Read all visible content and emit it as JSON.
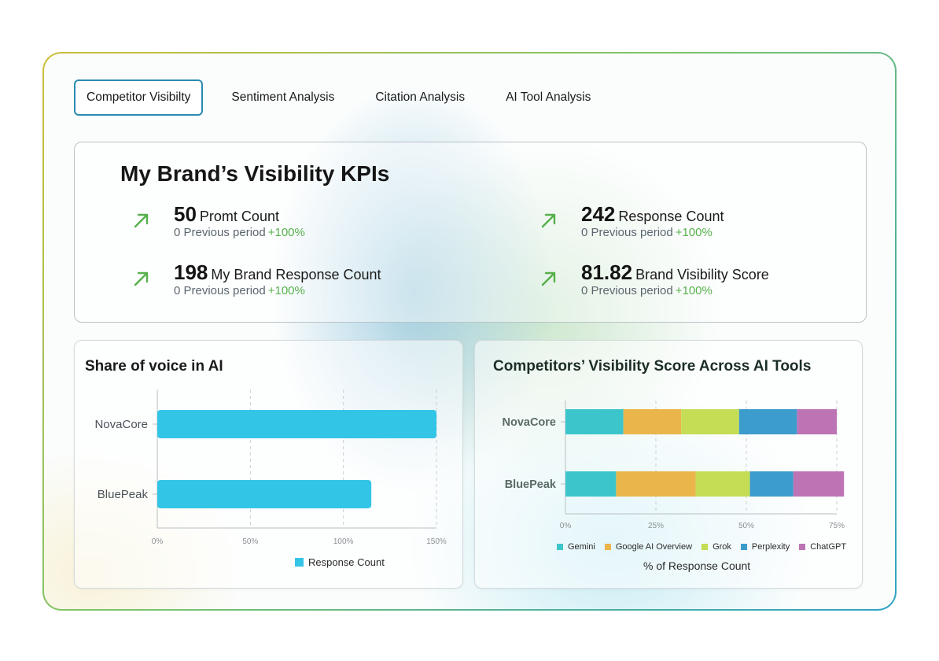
{
  "tabs": [
    {
      "label": "Competitor Visibilty",
      "active": true
    },
    {
      "label": "Sentiment Analysis",
      "active": false
    },
    {
      "label": "Citation Analysis",
      "active": false
    },
    {
      "label": "AI Tool Analysis",
      "active": false
    }
  ],
  "kpis": {
    "title": "My Brand’s Visibility KPIs",
    "items": [
      {
        "value": "50",
        "label": "Promt Count",
        "previous": "0 Previous period",
        "change": "+100%"
      },
      {
        "value": "242",
        "label": "Response Count",
        "previous": "0 Previous period",
        "change": "+100%"
      },
      {
        "value": "198",
        "label": "My Brand Response Count",
        "previous": "0 Previous period",
        "change": "+100%"
      },
      {
        "value": "81.82",
        "label": "Brand Visibility Score",
        "previous": "0 Previous period",
        "change": "+100%"
      }
    ]
  },
  "colors": {
    "accent_border": "#2b8bb0",
    "positive": "#56b04b",
    "bar": "#33c5e6",
    "gemini": "#3cc6cc",
    "google_ai_overview": "#eab54a",
    "grok": "#c4dd55",
    "perplexity": "#3c9ccc",
    "chatgpt": "#bd74b5"
  },
  "chart_data": [
    {
      "type": "bar",
      "orientation": "horizontal",
      "title": "Share of voice in AI",
      "categories": [
        "NovaCore",
        "BluePeak"
      ],
      "series": [
        {
          "name": "Response Count",
          "values": [
            150,
            115
          ]
        }
      ],
      "xlim": [
        0,
        150
      ],
      "x_ticks": [
        "0%",
        "50%",
        "100%",
        "150%"
      ],
      "grid": true,
      "legend": "bottom"
    },
    {
      "type": "bar",
      "orientation": "horizontal",
      "stacked": true,
      "title": "Competitors’ Visibility Score Across AI Tools",
      "categories": [
        "NovaCore",
        "BluePeak"
      ],
      "series": [
        {
          "name": "Gemini",
          "values": [
            16,
            14
          ]
        },
        {
          "name": "Google AI Overview",
          "values": [
            16,
            22
          ]
        },
        {
          "name": "Grok",
          "values": [
            16,
            15
          ]
        },
        {
          "name": "Perplexity",
          "values": [
            16,
            12
          ]
        },
        {
          "name": "ChatGPT",
          "values": [
            11,
            14
          ]
        }
      ],
      "xlim": [
        0,
        75
      ],
      "x_ticks": [
        "0%",
        "25%",
        "50%",
        "75%"
      ],
      "xlabel": "% of Response Count",
      "grid": true,
      "legend": "bottom"
    }
  ]
}
